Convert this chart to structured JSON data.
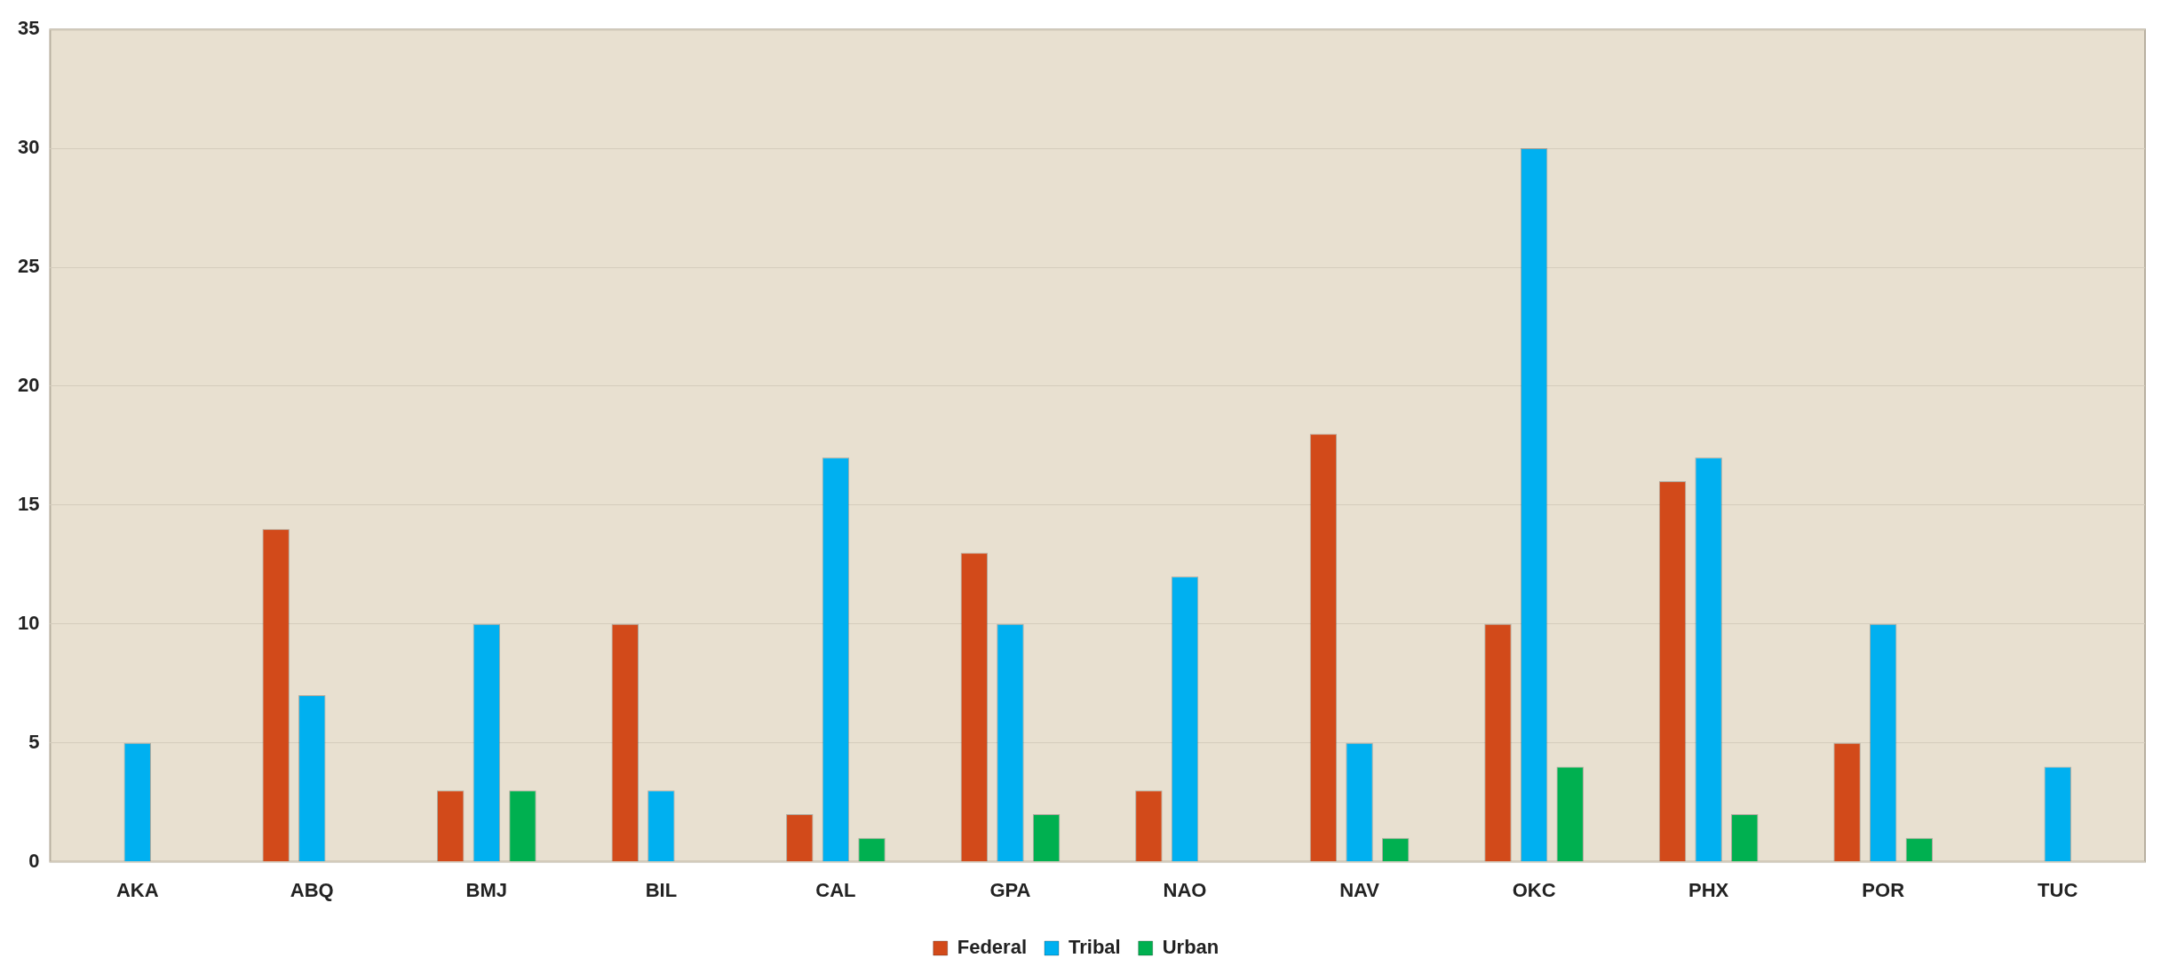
{
  "chart_data": {
    "type": "bar",
    "categories": [
      "AKA",
      "ABQ",
      "BMJ",
      "BIL",
      "CAL",
      "GPA",
      "NAO",
      "NAV",
      "OKC",
      "PHX",
      "POR",
      "TUC"
    ],
    "series": [
      {
        "name": "Federal",
        "color": "#d24a1a",
        "values": [
          null,
          14,
          3,
          10,
          2,
          13,
          3,
          18,
          10,
          16,
          5,
          null
        ]
      },
      {
        "name": "Tribal",
        "color": "#00b0f0",
        "values": [
          5,
          7,
          10,
          3,
          17,
          10,
          12,
          5,
          30,
          17,
          10,
          4
        ]
      },
      {
        "name": "Urban",
        "color": "#00b050",
        "values": [
          null,
          null,
          3,
          null,
          1,
          2,
          null,
          1,
          4,
          2,
          1,
          null
        ]
      }
    ],
    "ylim": [
      0,
      35
    ],
    "yticks": [
      0,
      5,
      10,
      15,
      20,
      25,
      30,
      35
    ],
    "grid": "y",
    "legend": "bottom"
  }
}
